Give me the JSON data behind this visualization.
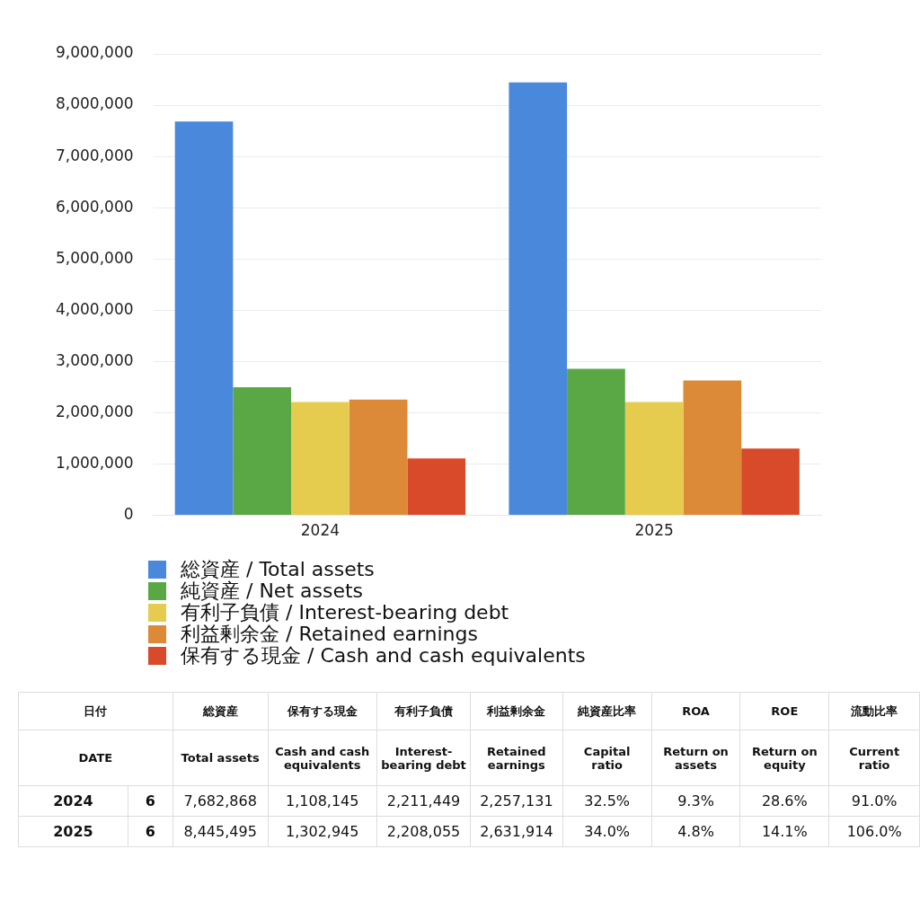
{
  "chart_data": {
    "type": "bar",
    "categories": [
      "2024",
      "2025"
    ],
    "series": [
      {
        "name": "総資産 / Total assets",
        "color": "#4a88dc",
        "values": [
          7682868,
          8445495
        ]
      },
      {
        "name": "純資産 / Net assets",
        "color": "#5aa845",
        "values": [
          2500000,
          2860000
        ]
      },
      {
        "name": "有利子負債 / Interest-bearing debt",
        "color": "#e6cc4e",
        "values": [
          2211449,
          2208055
        ]
      },
      {
        "name": "利益剰余金 / Retained earnings",
        "color": "#dd8a38",
        "values": [
          2257131,
          2631914
        ]
      },
      {
        "name": "保有する現金 /  Cash and cash equivalents",
        "color": "#d84a2a",
        "values": [
          1108145,
          1302945
        ]
      }
    ],
    "ylim": [
      0,
      9000000
    ],
    "yticks": [
      {
        "value": 0,
        "label": "0"
      },
      {
        "value": 1000000,
        "label": "1,000,000"
      },
      {
        "value": 2000000,
        "label": "2,000,000"
      },
      {
        "value": 3000000,
        "label": "3,000,000"
      },
      {
        "value": 4000000,
        "label": "4,000,000"
      },
      {
        "value": 5000000,
        "label": "5,000,000"
      },
      {
        "value": 6000000,
        "label": "6,000,000"
      },
      {
        "value": 7000000,
        "label": "7,000,000"
      },
      {
        "value": 8000000,
        "label": "8,000,000"
      },
      {
        "value": 9000000,
        "label": "9,000,000"
      }
    ],
    "grid": "y",
    "legend": "bottom",
    "annotations": [
      "日付",
      "総資産",
      "保有する現金",
      "有利子負債",
      "利益剰余金",
      "純資産比率",
      "ROA",
      "ROE",
      "流動比率",
      "DATE",
      "Total assets",
      "Cash and cash equivalents",
      "Interest-bearing debt",
      "Retained earnings",
      "Capital ratio",
      "Return on assets",
      "Return on equity",
      "Current ratio",
      "2024",
      "6",
      "7,682,868",
      "1,108,145",
      "2,211,449",
      "2,257,131",
      "32.5%",
      "9.3%",
      "28.6%",
      "91.0%",
      "2025",
      "6",
      "8,445,495",
      "1,302,945",
      "2,208,055",
      "2,631,914",
      "34.0%",
      "4.8%",
      "14.1%",
      "106.0%"
    ]
  }
}
